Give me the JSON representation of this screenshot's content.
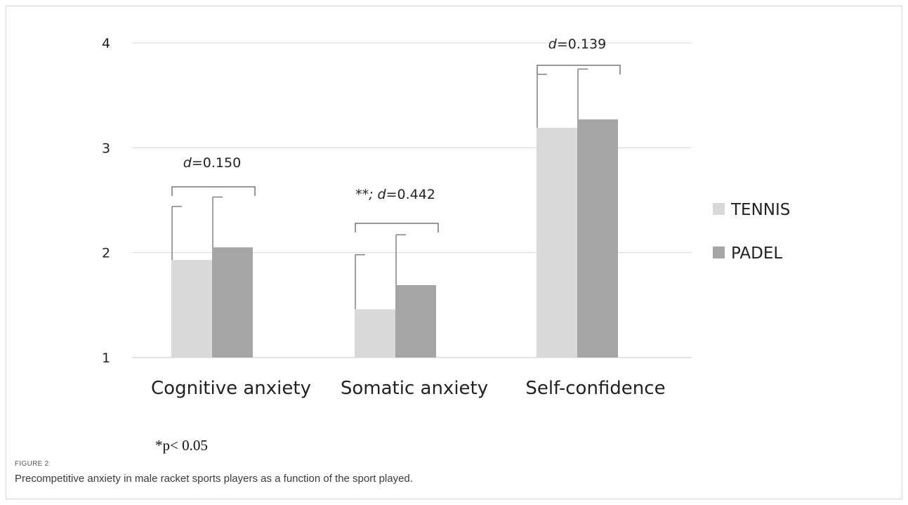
{
  "chart_data": {
    "type": "bar",
    "categories": [
      "Cognitive anxiety",
      "Somatic anxiety",
      "Self-confidence"
    ],
    "series": [
      {
        "name": "TENNIS",
        "color": "#d9d9d9",
        "values": [
          1.93,
          1.46,
          3.19
        ],
        "errors": [
          0.51,
          0.52,
          0.51
        ]
      },
      {
        "name": "PADEL",
        "color": "#a5a5a5",
        "values": [
          2.05,
          1.69,
          3.27
        ],
        "errors": [
          0.48,
          0.48,
          0.48
        ]
      }
    ],
    "ylim": [
      1,
      4
    ],
    "yticks": [
      1,
      2,
      3,
      4
    ],
    "grid": true,
    "legend_position": "right",
    "annotations": [
      {
        "prefix": "",
        "d_label": "d",
        "value_text": "=0.150"
      },
      {
        "prefix": "**; ",
        "d_label": "d",
        "value_text": "=0.442"
      },
      {
        "prefix": "",
        "d_label": "d",
        "value_text": "=0.139"
      }
    ]
  },
  "footnote": "*p< 0.05",
  "figure_label": "FIGURE 2",
  "caption": "Precompetitive anxiety in male racket sports players as a function of the sport played."
}
